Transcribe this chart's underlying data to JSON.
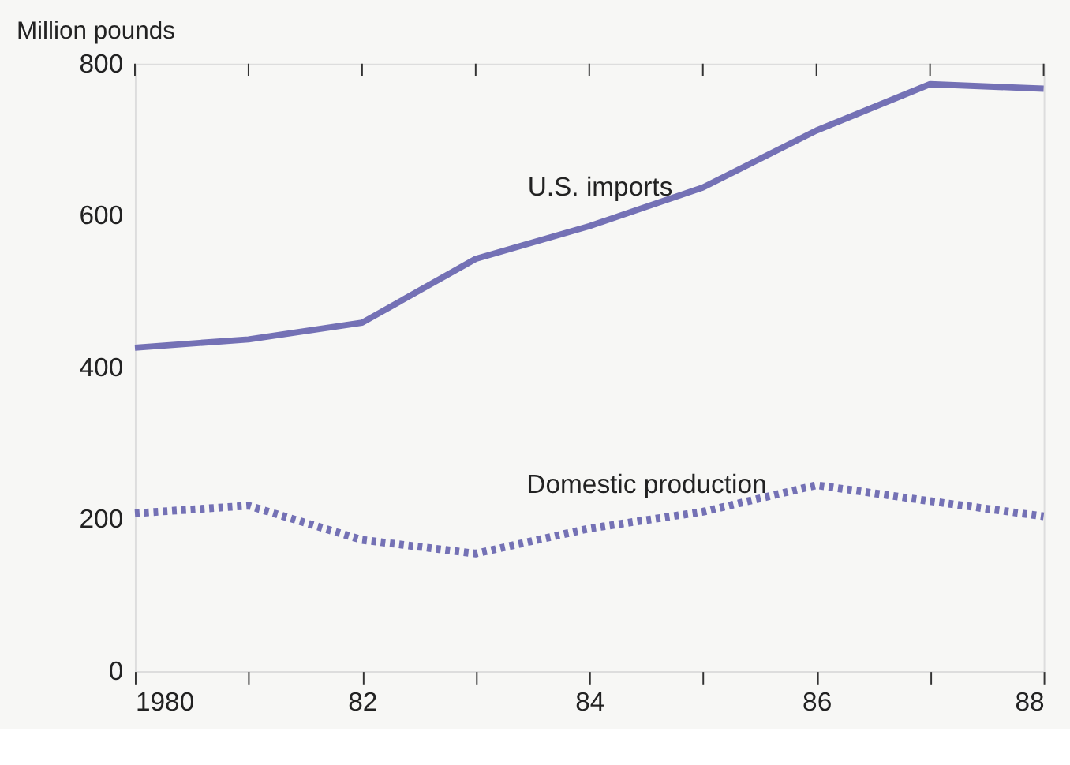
{
  "chart_data": {
    "type": "line",
    "ylabel": "Million pounds",
    "x": [
      1980,
      1981,
      1982,
      1983,
      1984,
      1985,
      1986,
      1987,
      1988
    ],
    "series": [
      {
        "color": "#7471b5",
        "line_style": "solid",
        "values": [
          426,
          437,
          459,
          543,
          586,
          637,
          712,
          773,
          767
        ]
      },
      {
        "color": "#7471b5",
        "line_style": "dotted",
        "values": [
          208,
          218,
          173,
          155,
          188,
          210,
          245,
          224,
          204
        ]
      }
    ],
    "annotations": [
      "U.S. imports",
      "Domestic production"
    ],
    "xlim": [
      1980,
      1988
    ],
    "ylim": [
      0,
      800
    ],
    "xticks": [
      1980,
      {
        "value": 1981,
        "label": null
      },
      {
        "value": 1982,
        "label": "82"
      },
      {
        "value": 1983,
        "label": null
      },
      {
        "value": 1984,
        "label": "84"
      },
      {
        "value": 1985,
        "label": null
      },
      {
        "value": 1986,
        "label": "86"
      },
      {
        "value": 1987,
        "label": null
      },
      {
        "value": 1988,
        "label": "88"
      }
    ],
    "yticks": [
      0,
      200,
      400,
      600,
      800
    ],
    "grid": false
  }
}
